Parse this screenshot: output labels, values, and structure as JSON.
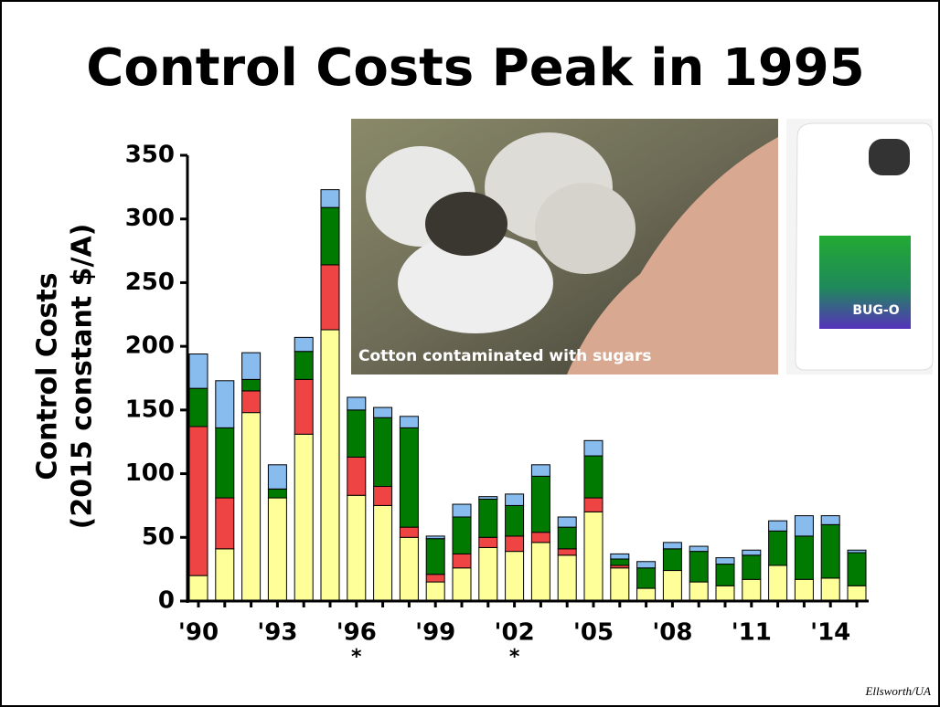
{
  "title": "Control Costs Peak in 1995",
  "photo_caption": "Cotton contaminated with sugars",
  "bottle_label": "BUG-O",
  "credit": "Ellsworth/UA",
  "chart_data": {
    "type": "stacked-bar",
    "y_label": [
      "Control Costs",
      "(2015 constant $/A)"
    ],
    "categories": [
      "'90",
      null,
      null,
      "'93",
      null,
      null,
      "'96",
      null,
      null,
      "'99",
      null,
      null,
      "'02",
      null,
      null,
      "'05",
      null,
      null,
      "'08",
      null,
      null,
      "'11",
      null,
      null,
      "'14",
      null
    ],
    "category_notes": [
      null,
      null,
      null,
      null,
      null,
      null,
      "*",
      null,
      null,
      null,
      null,
      null,
      "*",
      null,
      null,
      null,
      null,
      null,
      null,
      null,
      null,
      null,
      null,
      null,
      null,
      null
    ],
    "series": [
      {
        "color": "#ffff99",
        "values": [
          20,
          41,
          148,
          81,
          131,
          213,
          83,
          75,
          50,
          15,
          26,
          42,
          39,
          46,
          36,
          70,
          26,
          10,
          24,
          15,
          12,
          17,
          28,
          17,
          18,
          12
        ]
      },
      {
        "color": "#ee4444",
        "values": [
          117,
          40,
          17,
          0,
          43,
          51,
          30,
          15,
          8,
          6,
          11,
          8,
          12,
          8,
          5,
          11,
          2,
          0,
          0,
          0,
          0,
          0,
          0,
          0,
          0,
          0
        ]
      },
      {
        "color": "#007a00",
        "values": [
          30,
          55,
          9,
          7,
          22,
          45,
          37,
          54,
          78,
          28,
          29,
          30,
          24,
          44,
          17,
          33,
          5,
          16,
          17,
          24,
          17,
          19,
          27,
          34,
          42,
          26
        ]
      },
      {
        "color": "#88bbee",
        "values": [
          27,
          37,
          21,
          19,
          11,
          14,
          10,
          8,
          9,
          2,
          10,
          2,
          9,
          9,
          8,
          12,
          4,
          5,
          5,
          4,
          5,
          4,
          8,
          16,
          7,
          2
        ]
      }
    ],
    "ylim": [
      0,
      350
    ],
    "yticks": [
      0,
      50,
      100,
      150,
      200,
      250,
      300,
      350
    ]
  }
}
